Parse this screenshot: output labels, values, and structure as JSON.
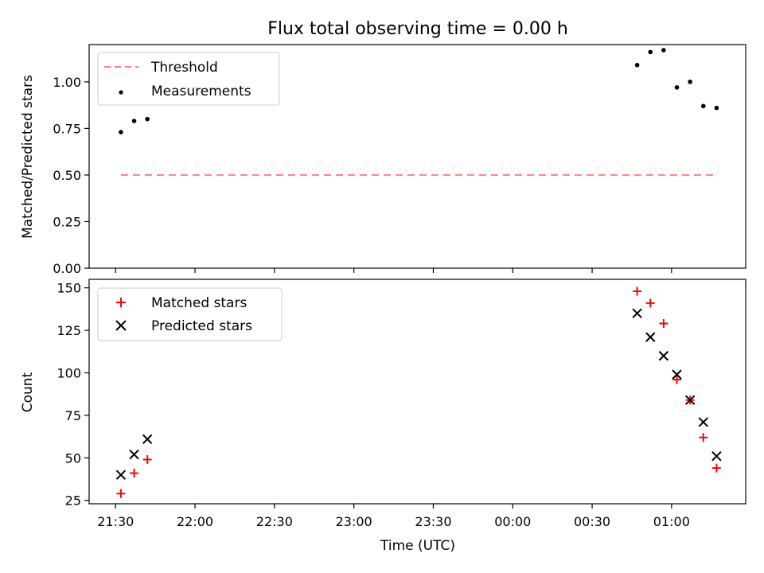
{
  "chart_data": [
    {
      "type": "line+scatter",
      "title": "Flux total observing time = 0.00 h",
      "ylabel": "Matched/Predicted stars",
      "ylim": [
        0,
        1.2
      ],
      "yticks": [
        "0.00",
        "0.25",
        "0.50",
        "0.75",
        "1.00"
      ],
      "legend_position": "upper-left",
      "series": [
        {
          "name": "Threshold",
          "kind": "dashed-line",
          "color": "#ff8080",
          "x": [
            "21:32",
            "01:17"
          ],
          "y": [
            0.5,
            0.5
          ]
        },
        {
          "name": "Measurements",
          "kind": "scatter-dot",
          "color": "#000000",
          "x": [
            "21:32",
            "21:37",
            "21:42",
            "00:47",
            "00:52",
            "00:57",
            "01:02",
            "01:07",
            "01:12",
            "01:17"
          ],
          "y": [
            0.73,
            0.79,
            0.8,
            1.09,
            1.16,
            1.17,
            0.97,
            1.0,
            0.87,
            0.86
          ]
        }
      ]
    },
    {
      "type": "scatter",
      "xlabel": "Time (UTC)",
      "ylabel": "Count",
      "ylim": [
        23,
        155
      ],
      "yticks": [
        "25",
        "50",
        "75",
        "100",
        "125",
        "150"
      ],
      "xticks": [
        "21:30",
        "22:00",
        "22:30",
        "23:00",
        "23:30",
        "00:00",
        "00:30",
        "01:00"
      ],
      "xlim": [
        "21:20",
        "01:28"
      ],
      "legend_position": "upper-left",
      "series": [
        {
          "name": "Matched stars",
          "kind": "plus",
          "color": "#ff0000",
          "x": [
            "21:32",
            "21:37",
            "21:42",
            "00:47",
            "00:52",
            "00:57",
            "01:02",
            "01:07",
            "01:12",
            "01:17"
          ],
          "y": [
            29,
            41,
            49,
            148,
            141,
            129,
            96,
            84,
            62,
            44
          ]
        },
        {
          "name": "Predicted stars",
          "kind": "x",
          "color": "#000000",
          "x": [
            "21:32",
            "21:37",
            "21:42",
            "00:47",
            "00:52",
            "00:57",
            "01:02",
            "01:07",
            "01:12",
            "01:17"
          ],
          "y": [
            40,
            52,
            61,
            135,
            121,
            110,
            99,
            84,
            71,
            51
          ]
        }
      ]
    }
  ]
}
